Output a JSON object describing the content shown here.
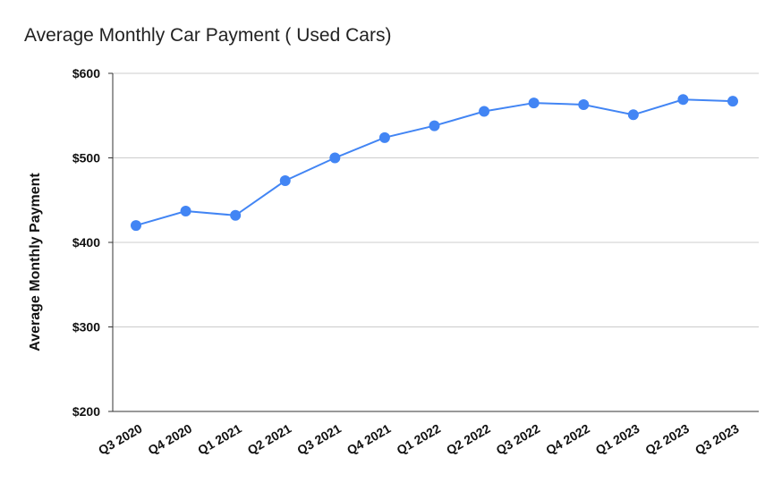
{
  "chart_data": {
    "type": "line",
    "title": "Average Monthly Car Payment ( Used Cars)",
    "xlabel": "",
    "ylabel": "Average Monthly Payment",
    "categories": [
      "Q3 2020",
      "Q4 2020",
      "Q1 2021",
      "Q2 2021",
      "Q3 2021",
      "Q4 2021",
      "Q1 2022",
      "Q2 2022",
      "Q3 2022",
      "Q4 2022",
      "Q1 2023",
      "Q2 2023",
      "Q3 2023"
    ],
    "series": [
      {
        "values": [
          420,
          437,
          432,
          473,
          500,
          524,
          538,
          555,
          565,
          563,
          551,
          569,
          567
        ]
      }
    ],
    "ylim": [
      200,
      600
    ],
    "yticks": [
      200,
      300,
      400,
      500,
      600
    ],
    "ytick_labels": [
      "$200",
      "$300",
      "$400",
      "$500",
      "$600"
    ],
    "grid": true,
    "legend": "none",
    "colors": {
      "series": "#4285f4",
      "grid": "#cccccc",
      "axis": "#333333"
    }
  }
}
